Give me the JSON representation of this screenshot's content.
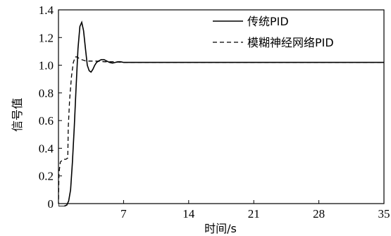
{
  "chart_data": {
    "type": "line",
    "title": "",
    "xlabel": "时间/s",
    "ylabel": "信号值",
    "xlim": [
      0,
      35
    ],
    "ylim": [
      0,
      1.4
    ],
    "xticks": [
      7,
      14,
      21,
      28,
      35
    ],
    "yticks": [
      0,
      0.2,
      0.4,
      0.6,
      0.8,
      1.0,
      1.2,
      1.4
    ],
    "xtick_labels": [
      "7",
      "14",
      "21",
      "28",
      "35"
    ],
    "ytick_labels": [
      "0",
      "0.2",
      "0.4",
      "0.6",
      "0.8",
      "1.0",
      "1.2",
      "1.4"
    ],
    "grid": false,
    "legend_position": "top-right",
    "series": [
      {
        "name": "传统PID",
        "style": "solid",
        "color": "#000000",
        "x": [
          0.0,
          0.3,
          0.6,
          0.9,
          1.1,
          1.3,
          1.5,
          1.7,
          1.9,
          2.1,
          2.3,
          2.5,
          2.7,
          2.9,
          3.1,
          3.3,
          3.5,
          3.7,
          3.9,
          4.1,
          4.3,
          4.6,
          4.9,
          5.2,
          5.5,
          5.8,
          6.1,
          6.4,
          6.7,
          7.0,
          7.5,
          8.0,
          9.0,
          10.0,
          12.0,
          14.0,
          17.0,
          21.0,
          25.0,
          28.0,
          31.0,
          35.0
        ],
        "y": [
          -0.02,
          -0.02,
          -0.02,
          -0.01,
          0.02,
          0.1,
          0.3,
          0.55,
          0.85,
          1.12,
          1.28,
          1.31,
          1.25,
          1.12,
          1.0,
          0.96,
          0.95,
          0.97,
          1.0,
          1.02,
          1.03,
          1.04,
          1.04,
          1.03,
          1.02,
          1.015,
          1.02,
          1.025,
          1.025,
          1.02,
          1.02,
          1.02,
          1.02,
          1.02,
          1.02,
          1.02,
          1.02,
          1.02,
          1.02,
          1.02,
          1.02,
          1.02
        ]
      },
      {
        "name": "模糊神经网络PID",
        "style": "dashed",
        "color": "#000000",
        "x": [
          0.0,
          0.05,
          0.2,
          0.35,
          0.5,
          0.8,
          1.0,
          1.05,
          1.2,
          1.4,
          1.6,
          1.8,
          2.0,
          2.2,
          2.5,
          3.0,
          3.5,
          4.0,
          5.0,
          6.0,
          7.0,
          8.0,
          10.0,
          14.0,
          21.0,
          28.0,
          35.0
        ],
        "y": [
          -0.02,
          0.22,
          0.3,
          0.31,
          0.32,
          0.32,
          0.33,
          0.55,
          0.75,
          0.92,
          1.02,
          1.06,
          1.06,
          1.05,
          1.04,
          1.03,
          1.03,
          1.03,
          1.025,
          1.025,
          1.02,
          1.02,
          1.02,
          1.02,
          1.02,
          1.02,
          1.02
        ]
      }
    ]
  }
}
